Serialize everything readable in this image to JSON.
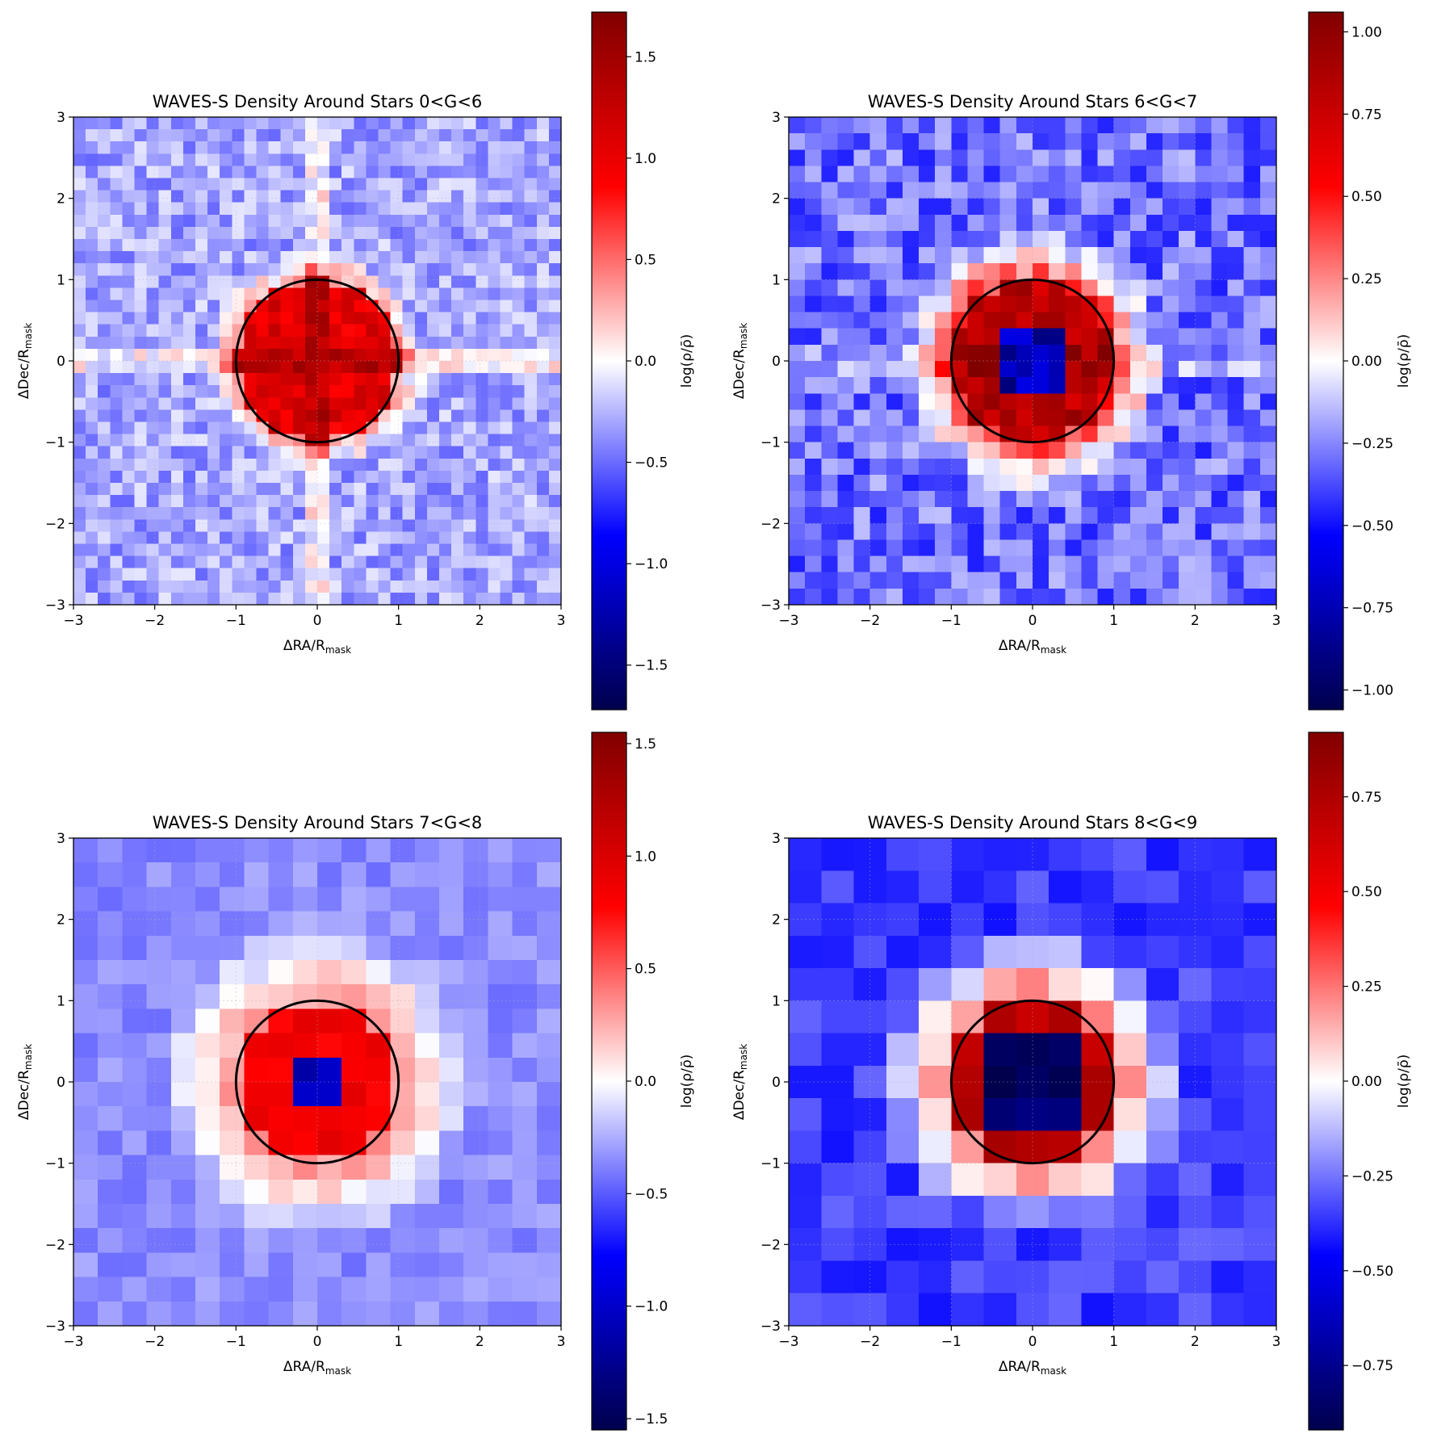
{
  "chart_data": [
    {
      "type": "heatmap",
      "title": "WAVES-S Density Around Stars 0<G<6",
      "xlabel": "ΔRA/R",
      "ylabel": "ΔDec/R",
      "label_subscript": "mask",
      "xlim": [
        -3,
        3
      ],
      "ylim": [
        -3,
        3
      ],
      "xticks": [
        "−3",
        "−2",
        "−1",
        "0",
        "1",
        "2",
        "3"
      ],
      "yticks": [
        "−3",
        "−2",
        "−1",
        "0",
        "1",
        "2",
        "3"
      ],
      "grid_n": 40,
      "colormap": "seismic",
      "colorbar": {
        "label": "log(ρ/ρ̄)",
        "range": [
          -1.72,
          1.72
        ],
        "ticks": [
          -1.5,
          -1.0,
          -0.5,
          0.0,
          0.5,
          1.0,
          1.5
        ],
        "tick_labels": [
          "−1.5",
          "−1.0",
          "−0.5",
          "0.0",
          "0.5",
          "1.0",
          "1.5"
        ]
      },
      "pattern": {
        "background": -0.3,
        "core": 1.05,
        "core_radius": 1.0,
        "halo": 0.35,
        "halo_width": 0.35,
        "hole": 0,
        "hole_value": 0,
        "stripes": 0.3,
        "noise": 0.22,
        "seed": 11
      },
      "mask_circle": {
        "center": [
          0,
          0
        ],
        "radius": 1
      },
      "grid": true
    },
    {
      "type": "heatmap",
      "title": "WAVES-S Density Around Stars 6<G<7",
      "xlabel": "ΔRA/R",
      "ylabel": "ΔDec/R",
      "label_subscript": "mask",
      "xlim": [
        -3,
        3
      ],
      "ylim": [
        -3,
        3
      ],
      "xticks": [
        "−3",
        "−2",
        "−1",
        "0",
        "1",
        "2",
        "3"
      ],
      "yticks": [
        "−3",
        "−2",
        "−1",
        "0",
        "1",
        "2",
        "3"
      ],
      "grid_n": 30,
      "colormap": "seismic",
      "colorbar": {
        "label": "log(ρ/ρ̄)",
        "range": [
          -1.06,
          1.06
        ],
        "ticks": [
          -1.0,
          -0.75,
          -0.5,
          -0.25,
          0.0,
          0.25,
          0.5,
          0.75,
          1.0
        ],
        "tick_labels": [
          "−1.00",
          "−0.75",
          "−0.50",
          "−0.25",
          "0.00",
          "0.25",
          "0.50",
          "0.75",
          "1.00"
        ]
      },
      "pattern": {
        "background": -0.3,
        "core": 0.82,
        "core_radius": 1.0,
        "halo": 0.45,
        "halo_width": 0.65,
        "hole": 0.4,
        "hole_value": -0.75,
        "stripes": 0.1,
        "noise": 0.17,
        "seed": 23
      },
      "mask_circle": {
        "center": [
          0,
          0
        ],
        "radius": 1
      },
      "grid": true
    },
    {
      "type": "heatmap",
      "title": "WAVES-S Density Around Stars 7<G<8",
      "xlabel": "ΔRA/R",
      "ylabel": "ΔDec/R",
      "label_subscript": "mask",
      "xlim": [
        -3,
        3
      ],
      "ylim": [
        -3,
        3
      ],
      "xticks": [
        "−3",
        "−2",
        "−1",
        "0",
        "1",
        "2",
        "3"
      ],
      "yticks": [
        "−3",
        "−2",
        "−1",
        "0",
        "1",
        "2",
        "3"
      ],
      "grid_n": 20,
      "colormap": "seismic",
      "colorbar": {
        "label": "log(ρ/ρ̄)",
        "range": [
          -1.55,
          1.55
        ],
        "ticks": [
          -1.5,
          -1.0,
          -0.5,
          0.0,
          0.5,
          1.0,
          1.5
        ],
        "tick_labels": [
          "−1.5",
          "−1.0",
          "−0.5",
          "0.0",
          "0.5",
          "1.0",
          "1.5"
        ]
      },
      "pattern": {
        "background": -0.35,
        "core": 0.85,
        "core_radius": 1.0,
        "halo": 0.35,
        "halo_width": 1.0,
        "hole": 0.35,
        "hole_value": -1.1,
        "stripes": 0.0,
        "noise": 0.1,
        "seed": 37
      },
      "mask_circle": {
        "center": [
          0,
          0
        ],
        "radius": 1
      },
      "grid": true
    },
    {
      "type": "heatmap",
      "title": "WAVES-S Density Around Stars 8<G<9",
      "xlabel": "ΔRA/R",
      "ylabel": "ΔDec/R",
      "label_subscript": "mask",
      "xlim": [
        -3,
        3
      ],
      "ylim": [
        -3,
        3
      ],
      "xticks": [
        "−3",
        "−2",
        "−1",
        "0",
        "1",
        "2",
        "3"
      ],
      "yticks": [
        "−3",
        "−2",
        "−1",
        "0",
        "1",
        "2",
        "3"
      ],
      "grid_n": 15,
      "colormap": "seismic",
      "colorbar": {
        "label": "log(ρ/ρ̄)",
        "range": [
          -0.92,
          0.92
        ],
        "ticks": [
          -0.75,
          -0.5,
          -0.25,
          0.0,
          0.25,
          0.5,
          0.75
        ],
        "tick_labels": [
          "−0.75",
          "−0.50",
          "−0.25",
          "0.00",
          "0.25",
          "0.50",
          "0.75"
        ]
      },
      "pattern": {
        "background": -0.35,
        "core": 0.72,
        "core_radius": 1.0,
        "halo": 0.3,
        "halo_width": 0.9,
        "hole": 0.4,
        "hole_value": -0.85,
        "stripes": 0.0,
        "noise": 0.08,
        "seed": 53
      },
      "mask_circle": {
        "center": [
          0,
          0
        ],
        "radius": 1
      },
      "grid": true
    }
  ]
}
